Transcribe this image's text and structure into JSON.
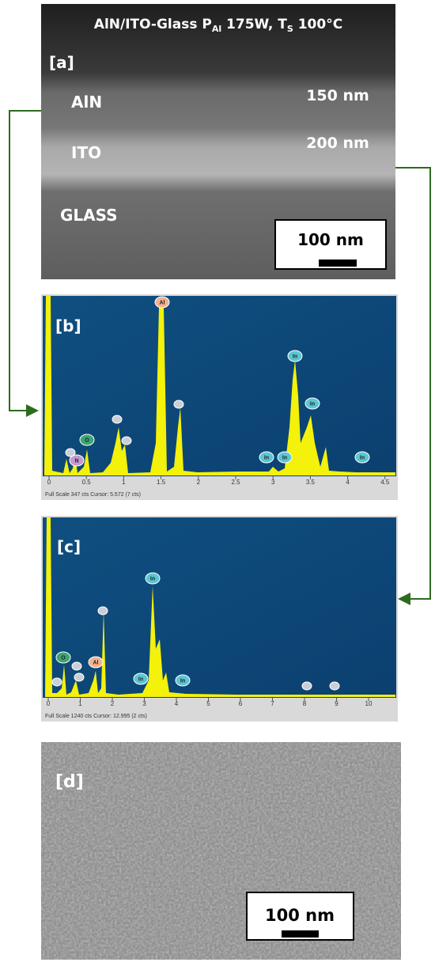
{
  "panel_a": {
    "title": [
      "AlN/ITO-Glass P",
      "Al",
      " 175W, T",
      "S",
      " 100°C"
    ],
    "label": "[a]",
    "layers": [
      "AlN",
      "ITO",
      "GLASS"
    ],
    "thicknesses": [
      "150 nm",
      "200 nm"
    ],
    "scale_bar": "100 nm"
  },
  "panel_b": {
    "label": "[b]",
    "ticks": [
      "0",
      "0.5",
      "1",
      "1.5",
      "2",
      "2.5",
      "3",
      "3.5",
      "4",
      "4.5"
    ],
    "footer": "Full Scale 347 cts Cursor: 5.572 (7 cts)",
    "peaks": [
      "Al",
      "In",
      "In",
      "O",
      "N",
      "In",
      "In",
      "In"
    ]
  },
  "panel_c": {
    "label": "[c]",
    "ticks": [
      "0",
      "1",
      "2",
      "3",
      "4",
      "5",
      "6",
      "7",
      "8",
      "9",
      "10"
    ],
    "footer": "Full Scale 1240 cts Cursor: 12.995 (2 cts)",
    "peaks": [
      "In",
      "O",
      "Al",
      "In",
      "In"
    ]
  },
  "panel_d": {
    "label": "[d]",
    "scale_bar": "100 nm"
  }
}
